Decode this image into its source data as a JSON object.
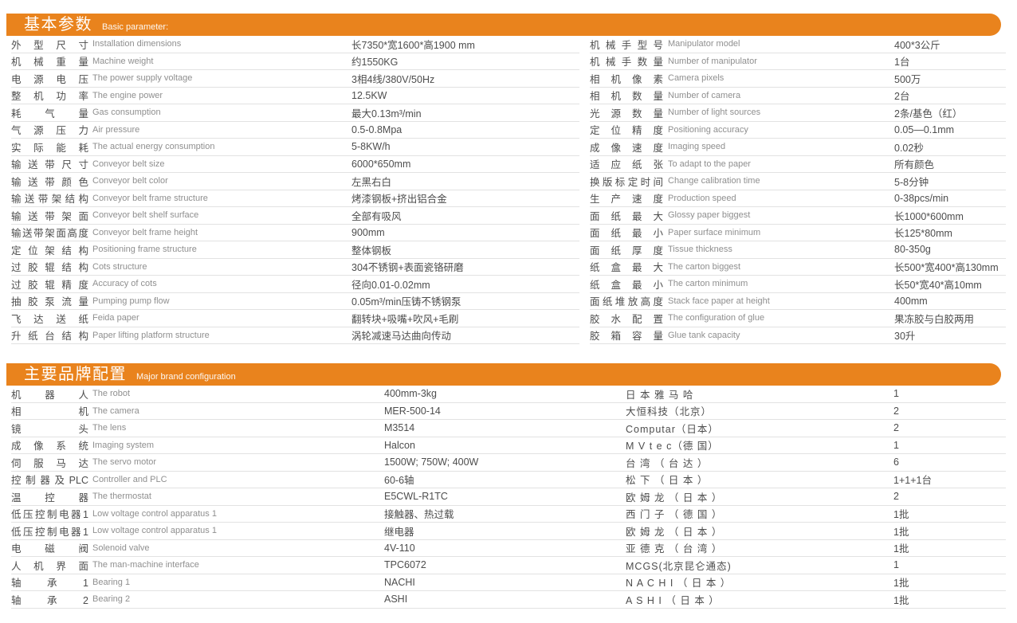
{
  "accent": "#E9831D",
  "section1": {
    "title_zh": "基本参数",
    "title_en": "Basic parameter:",
    "left_rows": [
      {
        "zh": "外型尺寸",
        "en": "Installation dimensions",
        "value": "长7350*宽1600*高1900 mm"
      },
      {
        "zh": "机械重量",
        "en": "Machine weight",
        "value": "约1550KG"
      },
      {
        "zh": "电源电压",
        "en": "The power supply voltage",
        "value": "3相4线/380V/50Hz"
      },
      {
        "zh": "整机功率",
        "en": "The engine power",
        "value": "12.5KW"
      },
      {
        "zh": "耗气量",
        "en": "Gas consumption",
        "value": "最大0.13m³/min"
      },
      {
        "zh": "气源压力",
        "en": "Air pressure",
        "value": "0.5-0.8Mpa"
      },
      {
        "zh": "实际能耗",
        "en": "The actual energy consumption",
        "value": "5-8KW/h"
      },
      {
        "zh": "输送带尺寸",
        "en": "Conveyor belt size",
        "value": "6000*650mm"
      },
      {
        "zh": "输送带颜色",
        "en": "Conveyor belt color",
        "value": "左黑右白"
      },
      {
        "zh": "输送带架结构",
        "en": "Conveyor belt frame structure",
        "value": "烤漆钢板+挤出铝合金"
      },
      {
        "zh": "输送带架面",
        "en": "Conveyor belt shelf surface",
        "value": "全部有吸风"
      },
      {
        "zh": "输送带架面高度",
        "en": "Conveyor belt frame height",
        "value": "900mm"
      },
      {
        "zh": "定位架结构",
        "en": "Positioning frame structure",
        "value": "整体钢板"
      },
      {
        "zh": "过胶辊结构",
        "en": "Cots structure",
        "value": "304不锈钢+表面瓷铬研磨"
      },
      {
        "zh": "过胶辊精度",
        "en": "Accuracy of cots",
        "value": "径向0.01-0.02mm"
      },
      {
        "zh": "抽胶泵流量",
        "en": "Pumping pump flow",
        "value": "0.05m³/min压铸不锈钢泵"
      },
      {
        "zh": "飞达送纸",
        "en": "Feida paper",
        "value": "翻转块+吸嘴+吹风+毛刷"
      },
      {
        "zh": "升纸台结构",
        "en": "Paper lifting platform structure",
        "value": "涡轮减速马达曲向传动"
      }
    ],
    "right_rows": [
      {
        "zh": "机械手型号",
        "en": "Manipulator model",
        "value": "400*3公斤"
      },
      {
        "zh": "机械手数量",
        "en": "Number of manipulator",
        "value": "1台"
      },
      {
        "zh": "相机像素",
        "en": "Camera pixels",
        "value": "500万"
      },
      {
        "zh": "相机数量",
        "en": "Number of camera",
        "value": "2台"
      },
      {
        "zh": "光源数量",
        "en": "Number of light sources",
        "value": "2条/基色（红）"
      },
      {
        "zh": "定位精度",
        "en": "Positioning accuracy",
        "value": "0.05—0.1mm"
      },
      {
        "zh": "成像速度",
        "en": "Imaging speed",
        "value": "0.02秒"
      },
      {
        "zh": "适应纸张",
        "en": "To adapt to the paper",
        "value": "所有颜色"
      },
      {
        "zh": "换版标定时间",
        "en": "Change calibration time",
        "value": "5-8分钟"
      },
      {
        "zh": "生产速度",
        "en": "Production speed",
        "value": "0-38pcs/min"
      },
      {
        "zh": "面纸最大",
        "en": "Glossy paper biggest",
        "value": "长1000*600mm"
      },
      {
        "zh": "面纸最小",
        "en": "Paper surface minimum",
        "value": "长125*80mm"
      },
      {
        "zh": "面纸厚度",
        "en": "Tissue thickness",
        "value": "80-350g"
      },
      {
        "zh": "纸盒最大",
        "en": "The carton biggest",
        "value": "长500*宽400*高130mm"
      },
      {
        "zh": "纸盒最小",
        "en": "The carton minimum",
        "value": "长50*宽40*高10mm"
      },
      {
        "zh": "面纸堆放高度",
        "en": "Stack face paper at height",
        "value": "400mm"
      },
      {
        "zh": "胶水配置",
        "en": "The configuration of glue",
        "value": "果冻胶与白胶两用"
      },
      {
        "zh": "胶箱容量",
        "en": "Glue tank capacity",
        "value": "30升"
      }
    ]
  },
  "section2": {
    "title_zh": "主要品牌配置",
    "title_en": "Major brand configuration",
    "rows": [
      {
        "zh": "机器人",
        "en": "The robot",
        "model": "400mm-3kg",
        "brand": "日 本 雅 马 哈",
        "qty": "1"
      },
      {
        "zh": "相机",
        "en": "The camera",
        "model": "MER-500-14",
        "brand": "大恒科技（北京）",
        "qty": "2"
      },
      {
        "zh": "镜头",
        "en": "The lens",
        "model": "M3514",
        "brand": "Computar（日本）",
        "qty": "2"
      },
      {
        "zh": "成像系统",
        "en": "Imaging system",
        "model": "Halcon",
        "brand": "M V t e c（德 国）",
        "qty": "1"
      },
      {
        "zh": "伺服马达",
        "en": "The servo motor",
        "model": "1500W; 750W; 400W",
        "brand": "台 湾 （ 台 达 ）",
        "qty": "6"
      },
      {
        "zh": "控制器及PLC",
        "en": "Controller and PLC",
        "model": "60-6轴",
        "brand": "松 下 （ 日 本 ）",
        "qty": "1+1+1台"
      },
      {
        "zh": "温控器",
        "en": "The thermostat",
        "model": "E5CWL-R1TC",
        "brand": "欧 姆 龙 （ 日 本 ）",
        "qty": "2"
      },
      {
        "zh": "低压控制电器1",
        "en": "Low voltage control apparatus 1",
        "model": "接触器、热过载",
        "brand": "西 门 子 （ 德 国 ）",
        "qty": "1批"
      },
      {
        "zh": "低压控制电器1",
        "en": "Low voltage control apparatus 1",
        "model": "继电器",
        "brand": "欧 姆 龙 （ 日 本 ）",
        "qty": "1批"
      },
      {
        "zh": "电磁阀",
        "en": "Solenoid valve",
        "model": "4V-110",
        "brand": "亚 德 克 （ 台 湾 ）",
        "qty": "1批"
      },
      {
        "zh": "人机界面",
        "en": "The man-machine interface",
        "model": "TPC6072",
        "brand": "MCGS(北京昆仑通态)",
        "qty": "1"
      },
      {
        "zh": "轴承1",
        "en": "Bearing 1",
        "model": "NACHI",
        "brand": "N A C H I （ 日 本 ）",
        "qty": "1批"
      },
      {
        "zh": "轴承2",
        "en": "Bearing 2",
        "model": "ASHI",
        "brand": "A S H I （ 日 本 ）",
        "qty": "1批"
      }
    ]
  }
}
